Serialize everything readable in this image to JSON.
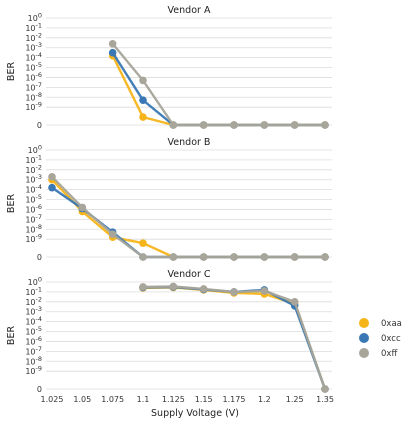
{
  "chart_data": {
    "type": "line",
    "xlabel": "Supply Voltage (V)",
    "ylabel": "BER",
    "x_ticks": [
      "1.025",
      "1.05",
      "1.075",
      "1.1",
      "1.125",
      "1.15",
      "1.175",
      "1.2",
      "1.25",
      "1.35"
    ],
    "y_ticks": [
      "10^0",
      "10^-1",
      "10^-2",
      "10^-3",
      "10^-4",
      "10^-5",
      "10^-6",
      "10^-7",
      "10^-8",
      "10^-9",
      "0"
    ],
    "y_scale": "log",
    "grid": true,
    "legend": {
      "position": "right",
      "entries": [
        {
          "name": "0xaa",
          "color": "#f5b41a"
        },
        {
          "name": "0xcc",
          "color": "#3a78b5"
        },
        {
          "name": "0xff",
          "color": "#a8a59a"
        }
      ]
    },
    "panels": [
      {
        "title": "Vendor A",
        "series": [
          {
            "name": "0xaa",
            "x": [
              "1.075",
              "1.1",
              "1.125",
              "1.15",
              "1.175",
              "1.2",
              "1.25",
              "1.35"
            ],
            "y": [
              -3.8,
              -10,
              -10.8,
              -10.8,
              -10.8,
              -10.8,
              -10.8,
              -10.8
            ]
          },
          {
            "name": "0xcc",
            "x": [
              "1.075",
              "1.1",
              "1.125",
              "1.15",
              "1.175",
              "1.2",
              "1.25",
              "1.35"
            ],
            "y": [
              -3.5,
              -8.3,
              -10.8,
              -10.8,
              -10.8,
              -10.8,
              -10.8,
              -10.8
            ]
          },
          {
            "name": "0xff",
            "x": [
              "1.075",
              "1.1",
              "1.125",
              "1.15",
              "1.175",
              "1.2",
              "1.25",
              "1.35"
            ],
            "y": [
              -2.6,
              -6.3,
              -10.8,
              -10.8,
              -10.8,
              -10.8,
              -10.8,
              -10.8
            ]
          }
        ]
      },
      {
        "title": "Vendor B",
        "series": [
          {
            "name": "0xaa",
            "x": [
              "1.025",
              "1.05",
              "1.075",
              "1.1",
              "1.125",
              "1.15",
              "1.175",
              "1.2",
              "1.25",
              "1.35"
            ],
            "y": [
              -3.0,
              -6.2,
              -8.8,
              -9.4,
              -10.8,
              -10.8,
              -10.8,
              -10.8,
              -10.8,
              -10.8
            ]
          },
          {
            "name": "0xcc",
            "x": [
              "1.025",
              "1.05",
              "1.075",
              "1.1",
              "1.125",
              "1.15",
              "1.175",
              "1.2",
              "1.25",
              "1.35"
            ],
            "y": [
              -3.8,
              -5.9,
              -8.3,
              -10.8,
              -10.8,
              -10.8,
              -10.8,
              -10.8,
              -10.8,
              -10.8
            ]
          },
          {
            "name": "0xff",
            "x": [
              "1.025",
              "1.05",
              "1.075",
              "1.1",
              "1.125",
              "1.15",
              "1.175",
              "1.2",
              "1.25",
              "1.35"
            ],
            "y": [
              -2.7,
              -5.8,
              -8.5,
              -10.8,
              -10.8,
              -10.8,
              -10.8,
              -10.8,
              -10.8,
              -10.8
            ]
          }
        ]
      },
      {
        "title": "Vendor C",
        "series": [
          {
            "name": "0xaa",
            "x": [
              "1.1",
              "1.125",
              "1.15",
              "1.175",
              "1.2",
              "1.25",
              "1.35"
            ],
            "y": [
              -0.6,
              -0.55,
              -0.8,
              -1.1,
              -1.2,
              -2.2,
              -10.8
            ]
          },
          {
            "name": "0xcc",
            "x": [
              "1.1",
              "1.125",
              "1.15",
              "1.175",
              "1.2",
              "1.25",
              "1.35"
            ],
            "y": [
              -0.55,
              -0.5,
              -0.75,
              -1.0,
              -0.8,
              -2.4,
              -10.8
            ]
          },
          {
            "name": "0xff",
            "x": [
              "1.1",
              "1.125",
              "1.15",
              "1.175",
              "1.2",
              "1.25",
              "1.35"
            ],
            "y": [
              -0.5,
              -0.45,
              -0.7,
              -1.0,
              -0.9,
              -2.0,
              -10.8
            ]
          }
        ]
      }
    ]
  }
}
